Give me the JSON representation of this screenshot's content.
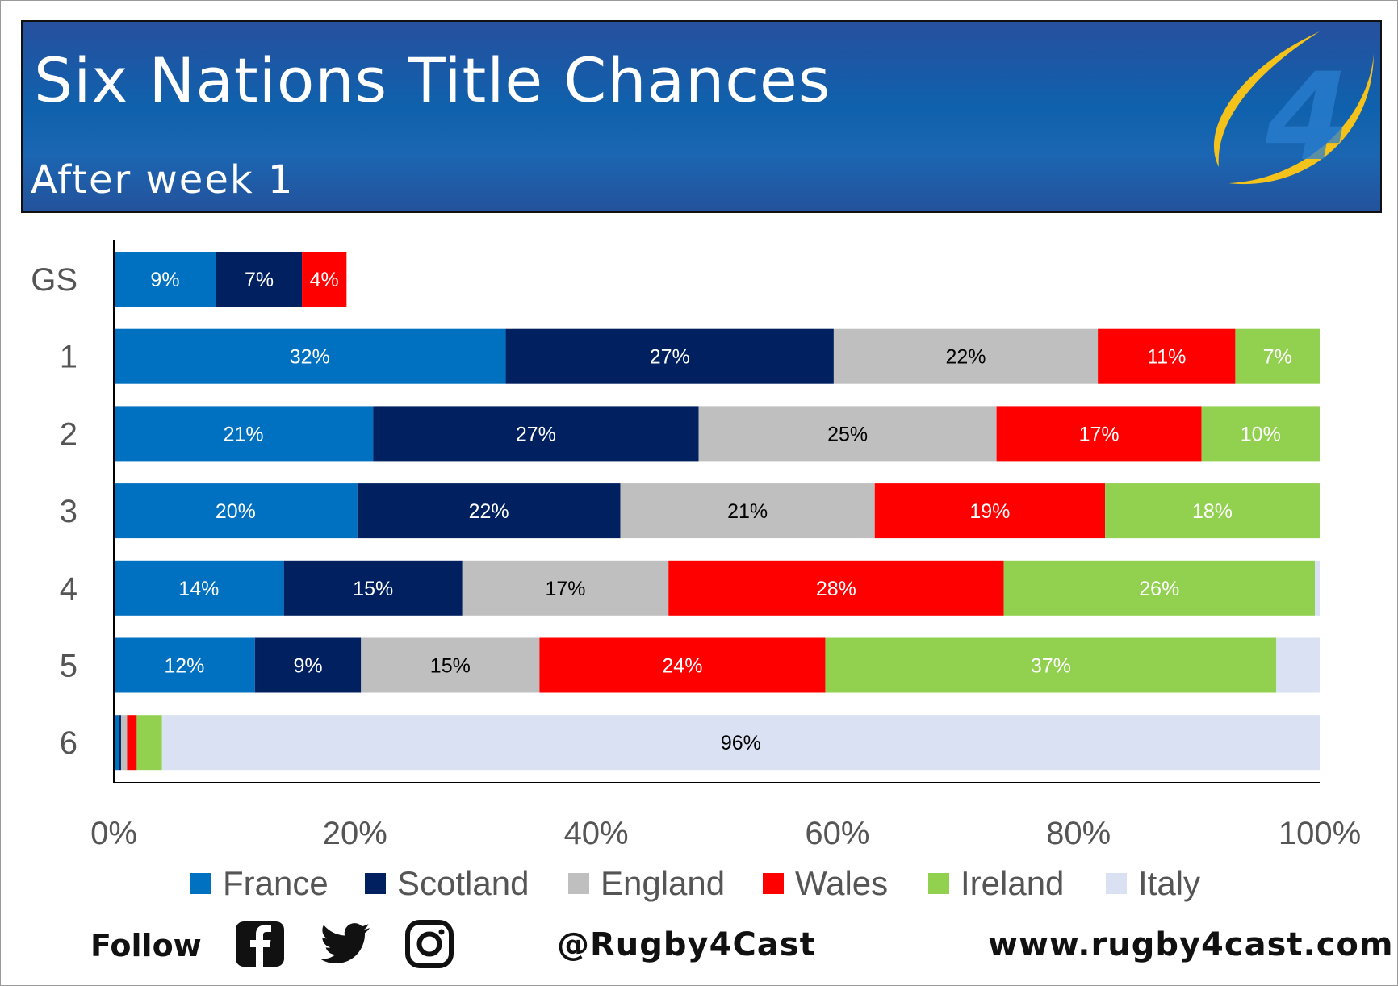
{
  "header": {
    "title": "Six Nations Title Chances",
    "subtitle": "After week 1"
  },
  "chart_data": {
    "type": "bar",
    "orientation": "horizontal",
    "stacked": true,
    "categories": [
      "GS",
      "1",
      "2",
      "3",
      "4",
      "5",
      "6"
    ],
    "xlim": [
      0,
      100
    ],
    "x_ticks": [
      "0%",
      "20%",
      "40%",
      "60%",
      "80%",
      "100%"
    ],
    "grid": false,
    "legend_position": "bottom",
    "series": [
      {
        "name": "France",
        "color": "#0070c0",
        "values": [
          8.5,
          32.5,
          21.5,
          20.2,
          14.1,
          11.7,
          0.4
        ]
      },
      {
        "name": "Scotland",
        "color": "#002060",
        "values": [
          7.1,
          27.2,
          27.0,
          21.8,
          14.8,
          8.8,
          0.2
        ]
      },
      {
        "name": "England",
        "color": "#bfbfbf",
        "values": [
          0,
          21.9,
          24.7,
          21.1,
          17.1,
          14.8,
          0.5
        ]
      },
      {
        "name": "Wales",
        "color": "#ff0000",
        "values": [
          3.7,
          11.4,
          17.0,
          19.1,
          27.8,
          23.7,
          0.8
        ]
      },
      {
        "name": "Ireland",
        "color": "#92d050",
        "values": [
          0,
          7.0,
          9.8,
          17.8,
          25.8,
          37.4,
          2.1
        ]
      },
      {
        "name": "Italy",
        "color": "#d9e1f2",
        "values": [
          0,
          0,
          0,
          0,
          0.4,
          3.6,
          96.0
        ]
      }
    ],
    "labels": [
      [
        "9%",
        "7%",
        "",
        "4%",
        "",
        ""
      ],
      [
        "32%",
        "27%",
        "22%",
        "11%",
        "7%",
        ""
      ],
      [
        "21%",
        "27%",
        "25%",
        "17%",
        "10%",
        ""
      ],
      [
        "20%",
        "22%",
        "21%",
        "19%",
        "18%",
        ""
      ],
      [
        "14%",
        "15%",
        "17%",
        "28%",
        "26%",
        ""
      ],
      [
        "12%",
        "9%",
        "15%",
        "24%",
        "37%",
        ""
      ],
      [
        "",
        "",
        "",
        "",
        "",
        "96%"
      ]
    ],
    "label_colors": [
      "#ffffff",
      "#ffffff",
      "#000000",
      "#ffffff",
      "#ffffff",
      "#000000"
    ]
  },
  "legend": {
    "items": [
      {
        "label": "France",
        "color": "#0070c0"
      },
      {
        "label": "Scotland",
        "color": "#002060"
      },
      {
        "label": "England",
        "color": "#bfbfbf"
      },
      {
        "label": "Wales",
        "color": "#ff0000"
      },
      {
        "label": "Ireland",
        "color": "#92d050"
      },
      {
        "label": "Italy",
        "color": "#d9e1f2"
      }
    ]
  },
  "footer": {
    "follow": "Follow",
    "icons": [
      "facebook-icon",
      "twitter-icon",
      "instagram-icon"
    ],
    "handle": "@Rugby4Cast",
    "website": "www.rugby4cast.com"
  },
  "logo": {
    "mark": "4"
  }
}
